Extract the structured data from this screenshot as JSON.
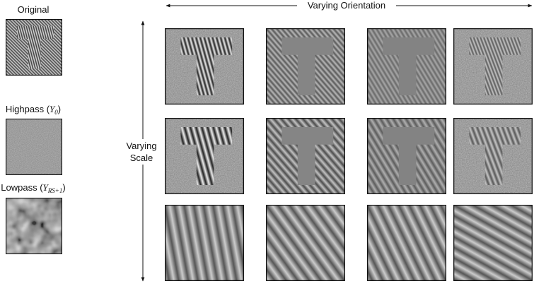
{
  "left_panels": [
    {
      "label": "Original"
    },
    {
      "label": "Highpass (",
      "symbol": "Y",
      "subscript": "0",
      "close": ")"
    },
    {
      "label": "Lowpass (",
      "symbol": "Y",
      "subscript": "RS+1",
      "close": ")"
    }
  ],
  "orientation_label": "Varying Orientation",
  "scale_label": [
    "Varying",
    "Scale"
  ]
}
